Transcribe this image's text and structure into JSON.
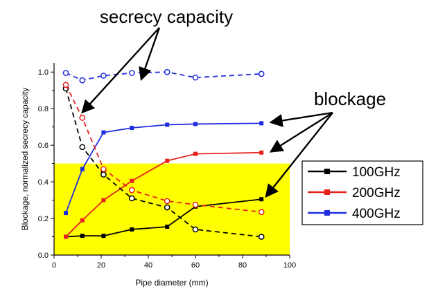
{
  "chart_data": {
    "type": "line",
    "xlabel": "Pipe diameter (mm)",
    "ylabel": "Blockage, normalized secrecy capacity",
    "xlim": [
      0,
      100
    ],
    "ylim": [
      0,
      1.05
    ],
    "x_ticks": [
      "0",
      "20",
      "40",
      "60",
      "80",
      "100"
    ],
    "y_ticks": [
      "0.0",
      "0.2",
      "0.4",
      "0.6",
      "0.8",
      "1.0"
    ],
    "highlight_band": {
      "y_from": 0,
      "y_to": 0.5,
      "color": "#ffff00"
    },
    "series": [
      {
        "name": "100GHz",
        "metric": "blockage",
        "color": "#000000",
        "style": "solid",
        "marker": "square",
        "x": [
          5,
          12,
          21,
          33,
          48,
          60,
          88
        ],
        "y": [
          0.1,
          0.105,
          0.105,
          0.14,
          0.155,
          0.265,
          0.305
        ]
      },
      {
        "name": "200GHz",
        "metric": "blockage",
        "color": "#e8201c",
        "style": "solid",
        "marker": "square",
        "x": [
          5,
          12,
          21,
          33,
          48,
          60,
          88
        ],
        "y": [
          0.1,
          0.19,
          0.3,
          0.405,
          0.515,
          0.553,
          0.56
        ]
      },
      {
        "name": "400GHz",
        "metric": "blockage",
        "color": "#1f2de0",
        "style": "solid",
        "marker": "square",
        "x": [
          5,
          12,
          21,
          33,
          48,
          60,
          88
        ],
        "y": [
          0.23,
          0.47,
          0.67,
          0.695,
          0.712,
          0.716,
          0.72
        ]
      },
      {
        "name": "100GHz",
        "metric": "secrecy capacity",
        "color": "#000000",
        "style": "dashed",
        "marker": "circle",
        "x": [
          5,
          12,
          21,
          33,
          48,
          60,
          88
        ],
        "y": [
          0.91,
          0.59,
          0.44,
          0.31,
          0.26,
          0.14,
          0.1
        ]
      },
      {
        "name": "200GHz",
        "metric": "secrecy capacity",
        "color": "#e8201c",
        "style": "dashed",
        "marker": "circle",
        "x": [
          5,
          12,
          21,
          33,
          48,
          60,
          88
        ],
        "y": [
          0.93,
          0.75,
          0.47,
          0.355,
          0.295,
          0.275,
          0.235
        ]
      },
      {
        "name": "400GHz",
        "metric": "secrecy capacity",
        "color": "#1f2de0",
        "style": "dashed",
        "marker": "circle",
        "x": [
          5,
          12,
          21,
          33,
          48,
          60,
          88
        ],
        "y": [
          0.995,
          0.955,
          0.98,
          0.995,
          1.0,
          0.97,
          0.99
        ]
      }
    ],
    "legend": {
      "position": "right",
      "entries": [
        {
          "label": "100GHz",
          "color": "#000000"
        },
        {
          "label": "200GHz",
          "color": "#e8201c"
        },
        {
          "label": "400GHz",
          "color": "#1f2de0"
        }
      ]
    },
    "annotations": [
      {
        "text": "secrecy capacity",
        "points_to": [
          {
            "x": 12,
            "y": 0.78
          },
          {
            "x": 37,
            "y": 0.96
          }
        ]
      },
      {
        "text": "blockage",
        "points_to": [
          {
            "x": 92,
            "y": 0.725
          },
          {
            "x": 92,
            "y": 0.565
          },
          {
            "x": 90,
            "y": 0.32
          }
        ]
      }
    ]
  }
}
